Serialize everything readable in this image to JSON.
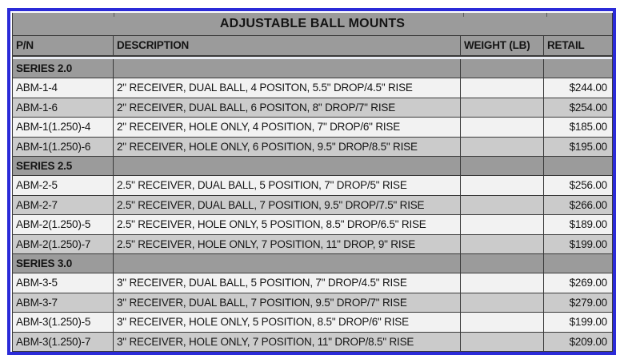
{
  "table": {
    "title": "ADJUSTABLE BALL MOUNTS",
    "columns": [
      "P/N",
      "DESCRIPTION",
      "WEIGHT (LB)",
      "RETAIL"
    ],
    "sections": [
      {
        "name": "SERIES 2.0",
        "rows": [
          {
            "pn": "ABM-1-4",
            "description": "2\" RECEIVER, DUAL BALL, 4 POSITON, 5.5\" DROP/4.5\" RISE",
            "weight": "",
            "retail": "$244.00"
          },
          {
            "pn": "ABM-1-6",
            "description": "2\" RECEIVER, DUAL BALL, 6 POSITON, 8\" DROP/7\" RISE",
            "weight": "",
            "retail": "$254.00"
          },
          {
            "pn": "ABM-1(1.250)-4",
            "description": "2\" RECEIVER, HOLE ONLY, 4 POSITION, 7\" DROP/6\" RISE",
            "weight": "",
            "retail": "$185.00"
          },
          {
            "pn": "ABM-1(1.250)-6",
            "description": "2\" RECEIVER, HOLE ONLY, 6 POSITION, 9.5\" DROP/8.5\" RISE",
            "weight": "",
            "retail": "$195.00"
          }
        ]
      },
      {
        "name": "SERIES 2.5",
        "rows": [
          {
            "pn": "ABM-2-5",
            "description": "2.5\" RECEIVER, DUAL BALL, 5 POSITION, 7\" DROP/5\" RISE",
            "weight": "",
            "retail": "$256.00"
          },
          {
            "pn": "ABM-2-7",
            "description": "2.5\" RECEIVER, DUAL BALL, 7 POSITION, 9.5\" DROP/7.5\" RISE",
            "weight": "",
            "retail": "$266.00"
          },
          {
            "pn": "ABM-2(1.250)-5",
            "description": "2.5\" RECEIVER, HOLE ONLY, 5 POSITION, 8.5\" DROP/6.5\" RISE",
            "weight": "",
            "retail": "$189.00"
          },
          {
            "pn": "ABM-2(1.250)-7",
            "description": "2.5\" RECEIVER, HOLE ONLY, 7 POSITION, 11\" DROP, 9\" RISE",
            "weight": "",
            "retail": "$199.00"
          }
        ]
      },
      {
        "name": "SERIES 3.0",
        "rows": [
          {
            "pn": "ABM-3-5",
            "description": "3\" RECEIVER, DUAL BALL, 5 POSITION, 7\" DROP/4.5\" RISE",
            "weight": "",
            "retail": "$269.00"
          },
          {
            "pn": "ABM-3-7",
            "description": "3\" RECEIVER, DUAL BALL, 7 POSITION, 9.5\" DROP/7\" RISE",
            "weight": "",
            "retail": "$279.00"
          },
          {
            "pn": "ABM-3(1.250)-5",
            "description": "3\" RECEIVER, HOLE ONLY, 5 POSITION, 8.5\" DROP/6\" RISE",
            "weight": "",
            "retail": "$199.00"
          },
          {
            "pn": "ABM-3(1.250)-7",
            "description": "3\" RECEIVER, HOLE ONLY, 7 POSITION, 11\" DROP/8.5\" RISE",
            "weight": "",
            "retail": "$209.00"
          }
        ]
      }
    ],
    "colors": {
      "selection_border": "#2b2bd8",
      "header_gray": "#9b9b9b",
      "row_gray": "#cbcbcb",
      "row_light": "#f2f2f2",
      "gridline": "#3a3a3a"
    }
  }
}
